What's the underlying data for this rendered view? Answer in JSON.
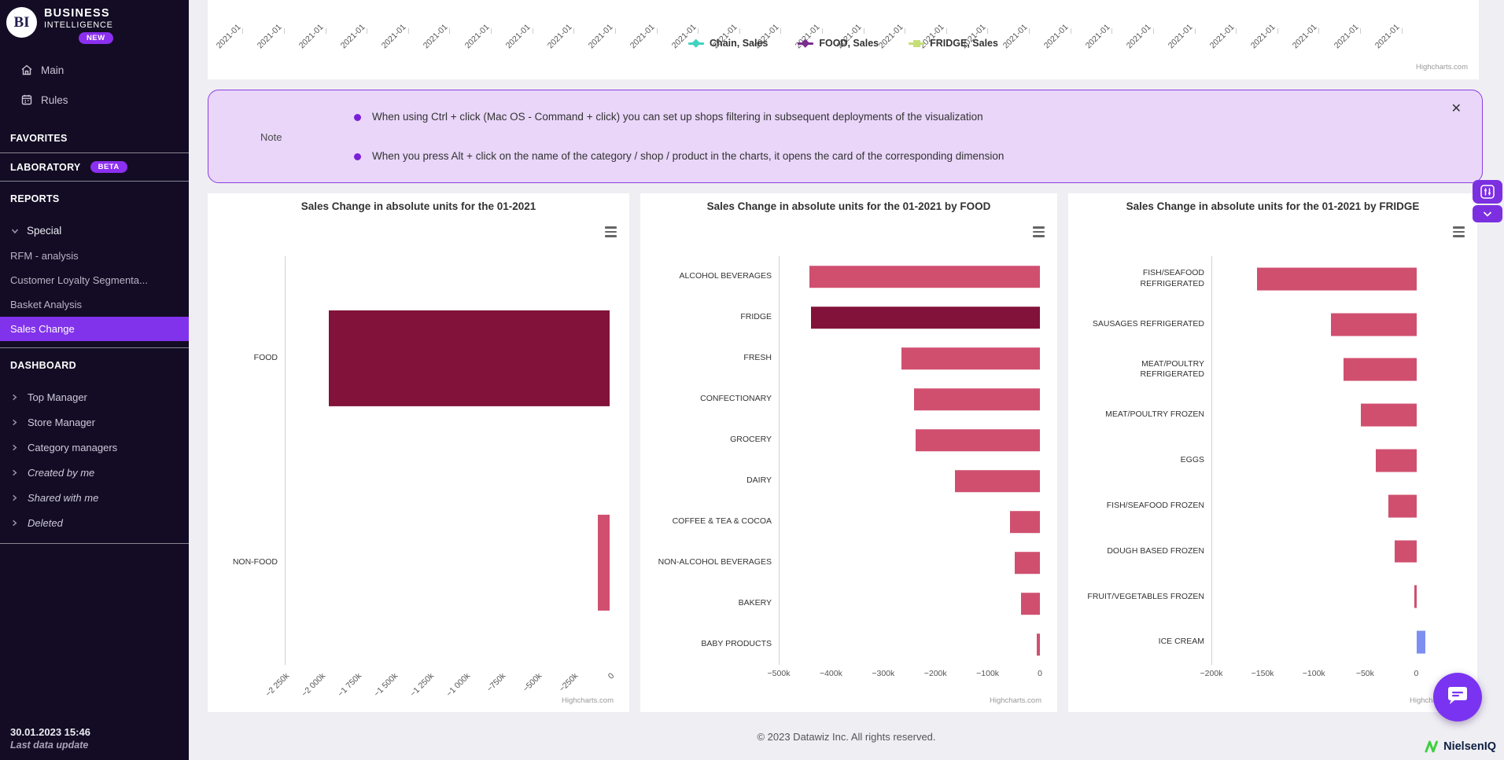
{
  "sidebar": {
    "logo": {
      "initials": "BI",
      "line1": "BUSINESS",
      "line2": "INTELLIGENCE",
      "badge": "NEW"
    },
    "menu": {
      "main": "Main",
      "rules": "Rules"
    },
    "favorites_header": "FAVORITES",
    "laboratory_header": "LABORATORY",
    "laboratory_badge": "BETA",
    "reports_header": "REPORTS",
    "special_group": "Special",
    "special_items": [
      "RFM - analysis",
      "Customer Loyalty Segmenta...",
      "Basket Analysis",
      "Sales Change"
    ],
    "selected_item": "Sales Change",
    "dashboard_header": "DASHBOARD",
    "dashboard_items": [
      "Top Manager",
      "Store Manager",
      "Category managers",
      "Created by me",
      "Shared with me",
      "Deleted"
    ],
    "last_update_time": "30.01.2023 15:46",
    "last_update_label": "Last data update"
  },
  "top_chart": {
    "x_labels": [
      "2021-01",
      "2021-01",
      "2021-01",
      "2021-01",
      "2021-01",
      "2021-01",
      "2021-01",
      "2021-01",
      "2021-01",
      "2021-01",
      "2021-01",
      "2021-01",
      "2021-01",
      "2021-01",
      "2021-01",
      "2021-01",
      "2021-01",
      "2021-01",
      "2021-01",
      "2021-01",
      "2021-01",
      "2021-01",
      "2021-01",
      "2021-01",
      "2021-01",
      "2021-01",
      "2021-01",
      "2021-01",
      "2021-01"
    ],
    "legend": [
      {
        "label": "Chain, Sales",
        "color": "#41d3c0",
        "marker": "diamond"
      },
      {
        "label": "FOOD, Sales",
        "color": "#7c2d8e",
        "marker": "diamond"
      },
      {
        "label": "FRIDGE, Sales",
        "color": "#c5df75",
        "marker": "square"
      }
    ],
    "credit": "Highcharts.com"
  },
  "note": {
    "label": "Note",
    "bullets": [
      "When using Ctrl + click (Mac OS - Command + click) you can set up shops filtering in subsequent deployments of the visualization",
      "When you press Alt + click on the name of the category / shop / product in the charts, it opens the card of the corresponding dimension"
    ],
    "close_icon": "✕"
  },
  "chart_data": [
    {
      "type": "bar",
      "orientation": "horizontal",
      "title": "Sales Change in absolute units for the 01-2021",
      "categories": [
        "FOOD",
        "NON-FOOD"
      ],
      "values": [
        -1950000,
        -80000
      ],
      "colors": [
        "#82123a",
        "#d04f6f"
      ],
      "xmin": -2250000,
      "xmax": 0,
      "rotated_ticks": true,
      "xticks": [
        {
          "label": "−2 250k",
          "value": -2250000
        },
        {
          "label": "−2 000k",
          "value": -2000000
        },
        {
          "label": "−1 750k",
          "value": -1750000
        },
        {
          "label": "−1 500k",
          "value": -1500000
        },
        {
          "label": "−1 250k",
          "value": -1250000
        },
        {
          "label": "−1 000k",
          "value": -1000000
        },
        {
          "label": "−750k",
          "value": -750000
        },
        {
          "label": "−500k",
          "value": -500000
        },
        {
          "label": "−250k",
          "value": -250000
        },
        {
          "label": "0",
          "value": 0
        }
      ],
      "credit": "Highcharts.com"
    },
    {
      "type": "bar",
      "orientation": "horizontal",
      "title": "Sales Change in absolute units for the 01-2021 by FOOD",
      "categories": [
        "ALCOHOL BEVERAGES",
        "FRIDGE",
        "FRESH",
        "CONFECTIONARY",
        "GROCERY",
        "DAIRY",
        "COFFEE & TEA & COCOA",
        "NON-ALCOHOL BEVERAGES",
        "BAKERY",
        "BABY PRODUCTS"
      ],
      "values": [
        -443000,
        -440000,
        -266000,
        -242000,
        -239000,
        -163000,
        -58000,
        -49000,
        -36000,
        -6000
      ],
      "colors": [
        "#d04f6f",
        "#82123a",
        "#d04f6f",
        "#d04f6f",
        "#d04f6f",
        "#d04f6f",
        "#d04f6f",
        "#d04f6f",
        "#d04f6f",
        "#d04f6f"
      ],
      "xmin": -500000,
      "xmax": 0,
      "rotated_ticks": false,
      "xticks": [
        {
          "label": "−500k",
          "value": -500000
        },
        {
          "label": "−400k",
          "value": -400000
        },
        {
          "label": "−300k",
          "value": -300000
        },
        {
          "label": "−200k",
          "value": -200000
        },
        {
          "label": "−100k",
          "value": -100000
        },
        {
          "label": "0",
          "value": 0
        }
      ],
      "credit": "Highcharts.com"
    },
    {
      "type": "bar",
      "orientation": "horizontal",
      "title": "Sales Change in absolute units for the 01-2021 by FRIDGE",
      "categories": [
        "FISH/SEAFOOD\nREFRIGERATED",
        "SAUSAGES REFRIGERATED",
        "MEAT/POULTRY\nREFRIGERATED",
        "MEAT/POULTRY FROZEN",
        "EGGS",
        "FISH/SEAFOOD FROZEN",
        "DOUGH BASED FROZEN",
        "FRUIT/VEGETABLES FROZEN",
        "ICE CREAM"
      ],
      "values": [
        -156000,
        -84000,
        -71000,
        -54000,
        -40000,
        -27000,
        -21000,
        -2000,
        9000
      ],
      "colors": [
        "#d04f6f",
        "#d04f6f",
        "#d04f6f",
        "#d04f6f",
        "#d04f6f",
        "#d04f6f",
        "#d04f6f",
        "#d04f6f",
        "#7d8ff0"
      ],
      "xmin": -200000,
      "xmax": 15000,
      "rotated_ticks": false,
      "xticks": [
        {
          "label": "−200k",
          "value": -200000
        },
        {
          "label": "−150k",
          "value": -150000
        },
        {
          "label": "−100k",
          "value": -100000
        },
        {
          "label": "−50k",
          "value": -50000
        },
        {
          "label": "0",
          "value": 0
        }
      ],
      "credit": "Highcharts.com"
    }
  ],
  "footer": {
    "copyright": "© 2023 Datawiz Inc. All rights reserved."
  },
  "branding": {
    "nielseniq": "NielsenIQ"
  },
  "accent_colors": {
    "purple": "#8133eb",
    "bar_pink": "#d04f6f",
    "bar_dark_red": "#82123a",
    "bar_blue": "#7d8ff0"
  }
}
